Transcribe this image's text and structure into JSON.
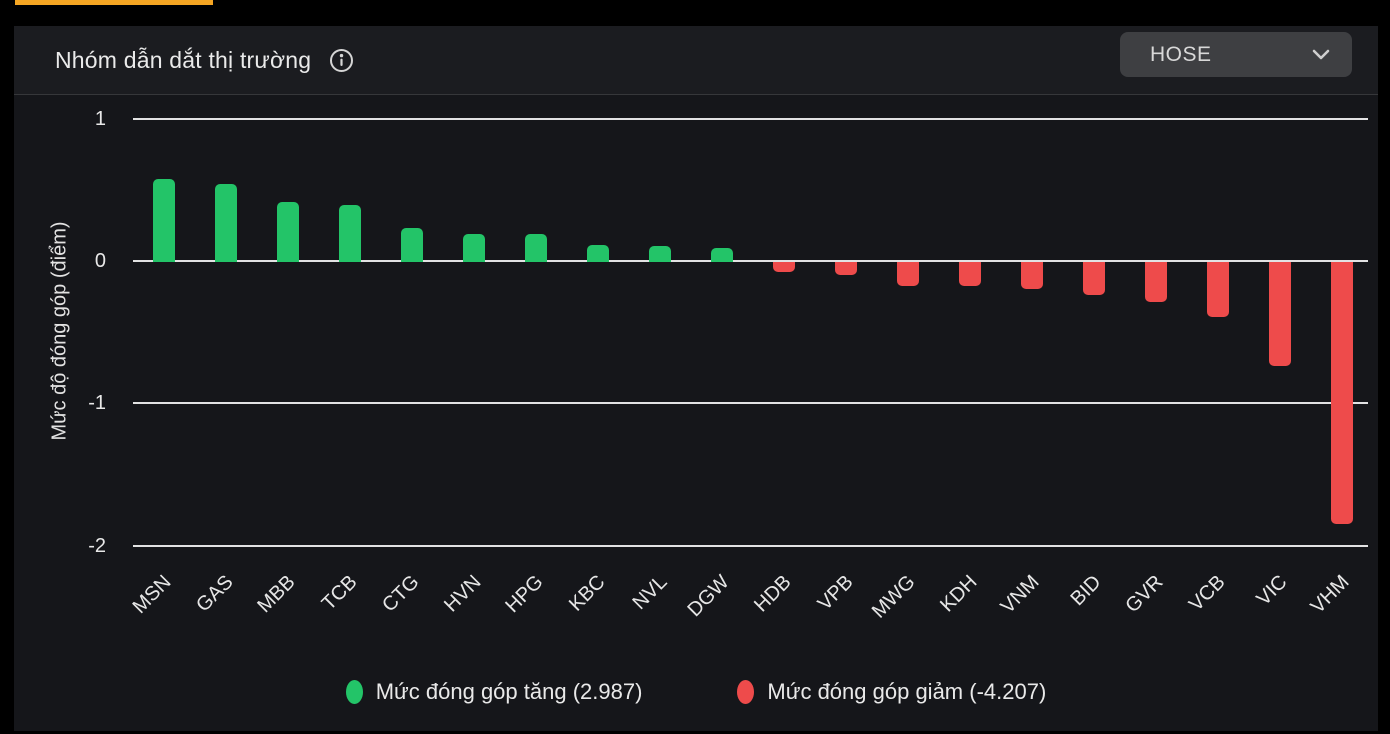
{
  "colors": {
    "accent_orange": "#f5a623",
    "positive_green": "#23c468",
    "negative_red": "#ee4b4b",
    "panel_bg": "#15161a",
    "header_bg": "#1b1c20"
  },
  "header": {
    "title": "Nhóm dẫn dắt thị trường",
    "info_icon": "info-circle-icon",
    "exchange_selector": {
      "value": "HOSE",
      "icon": "chevron-down-icon"
    }
  },
  "chart_data": {
    "type": "bar",
    "title": "Nhóm dẫn dắt thị trường",
    "xlabel": "",
    "ylabel": "Mức độ đóng góp (điểm)",
    "categories": [
      "MSN",
      "GAS",
      "MBB",
      "TCB",
      "CTG",
      "HVN",
      "HPG",
      "KBC",
      "NVL",
      "DGW",
      "HDB",
      "VPB",
      "MWG",
      "KDH",
      "VNM",
      "BID",
      "GVR",
      "VCB",
      "VIC",
      "VHM"
    ],
    "values": [
      0.58,
      0.55,
      0.42,
      0.4,
      0.24,
      0.2,
      0.2,
      0.12,
      0.11,
      0.1,
      -0.07,
      -0.09,
      -0.17,
      -0.17,
      -0.19,
      -0.23,
      -0.28,
      -0.39,
      -0.73,
      -1.84
    ],
    "yticks": [
      1,
      0,
      -1,
      -2
    ],
    "ylim": [
      -2.3,
      1.15
    ],
    "grid": true,
    "positive_color": "#23c468",
    "negative_color": "#ee4b4b",
    "legend": {
      "position": "bottom",
      "items": [
        {
          "label": "Mức đóng góp tăng (2.987)",
          "color": "#23c468"
        },
        {
          "label": "Mức đóng góp giảm (-4.207)",
          "color": "#ee4b4b"
        }
      ]
    }
  }
}
